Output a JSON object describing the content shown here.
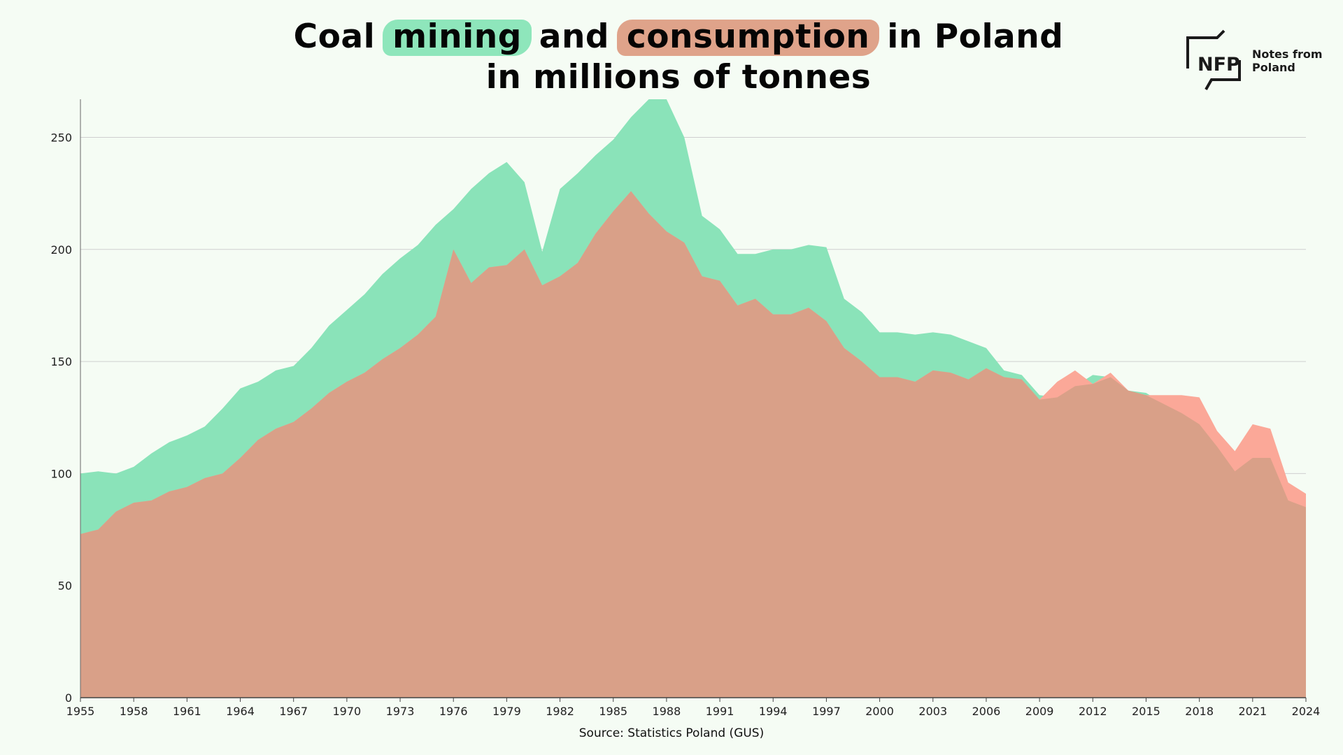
{
  "title": {
    "prefix": "Coal ",
    "highlight_mining": "mining",
    "middle": " and ",
    "highlight_consumption": "consumption",
    "suffix": " in Poland",
    "line2": "in millions of tonnes"
  },
  "logo": {
    "mark": "NFP",
    "line1": "Notes from",
    "line2": "Poland"
  },
  "source": "Source: Statistics Poland (GUS)",
  "colors": {
    "background": "#f5fcf4",
    "mining": "#8ae3b9",
    "consumption": "#fba898",
    "overlap": "#d9a088",
    "grid": "#cfcfcf"
  },
  "chart_data": {
    "type": "area",
    "title": "Coal mining and consumption in Poland in millions of tonnes",
    "xlabel": "",
    "ylabel": "",
    "ylim": [
      0,
      267
    ],
    "xlim": [
      1955,
      2024
    ],
    "y_ticks": [
      0,
      50,
      100,
      150,
      200,
      250
    ],
    "x_ticks": [
      1955,
      1958,
      1961,
      1964,
      1967,
      1970,
      1973,
      1976,
      1979,
      1982,
      1985,
      1988,
      1991,
      1994,
      1997,
      2000,
      2003,
      2006,
      2009,
      2012,
      2015,
      2018,
      2021,
      2024
    ],
    "grid": true,
    "x": [
      1955,
      1956,
      1957,
      1958,
      1959,
      1960,
      1961,
      1962,
      1963,
      1964,
      1965,
      1966,
      1967,
      1968,
      1969,
      1970,
      1971,
      1972,
      1973,
      1974,
      1975,
      1976,
      1977,
      1978,
      1979,
      1980,
      1981,
      1982,
      1983,
      1984,
      1985,
      1986,
      1987,
      1988,
      1989,
      1990,
      1991,
      1992,
      1993,
      1994,
      1995,
      1996,
      1997,
      1998,
      1999,
      2000,
      2001,
      2002,
      2003,
      2004,
      2005,
      2006,
      2007,
      2008,
      2009,
      2010,
      2011,
      2012,
      2013,
      2014,
      2015,
      2016,
      2017,
      2018,
      2019,
      2020,
      2021,
      2022,
      2023,
      2024
    ],
    "series": [
      {
        "name": "mining",
        "values": [
          100,
          101,
          100,
          103,
          109,
          114,
          117,
          121,
          129,
          138,
          141,
          146,
          148,
          156,
          166,
          173,
          180,
          189,
          196,
          202,
          211,
          218,
          227,
          234,
          239,
          230,
          199,
          227,
          234,
          242,
          249,
          259,
          267,
          267,
          250,
          215,
          209,
          198,
          198,
          200,
          200,
          202,
          201,
          178,
          172,
          163,
          163,
          162,
          163,
          162,
          159,
          156,
          146,
          144,
          135,
          134,
          139,
          144,
          143,
          137,
          136,
          131,
          127,
          122,
          112,
          101,
          107,
          107,
          88,
          85
        ]
      },
      {
        "name": "consumption",
        "values": [
          73,
          75,
          83,
          87,
          88,
          92,
          94,
          98,
          100,
          107,
          115,
          120,
          123,
          129,
          136,
          141,
          145,
          151,
          156,
          162,
          170,
          200,
          185,
          192,
          193,
          200,
          184,
          188,
          194,
          207,
          217,
          226,
          216,
          208,
          203,
          188,
          186,
          175,
          178,
          171,
          171,
          174,
          168,
          156,
          150,
          143,
          143,
          141,
          146,
          145,
          142,
          147,
          143,
          142,
          133,
          141,
          146,
          140,
          145,
          137,
          135,
          135,
          135,
          134,
          119,
          110,
          122,
          120,
          96,
          91
        ]
      }
    ]
  }
}
